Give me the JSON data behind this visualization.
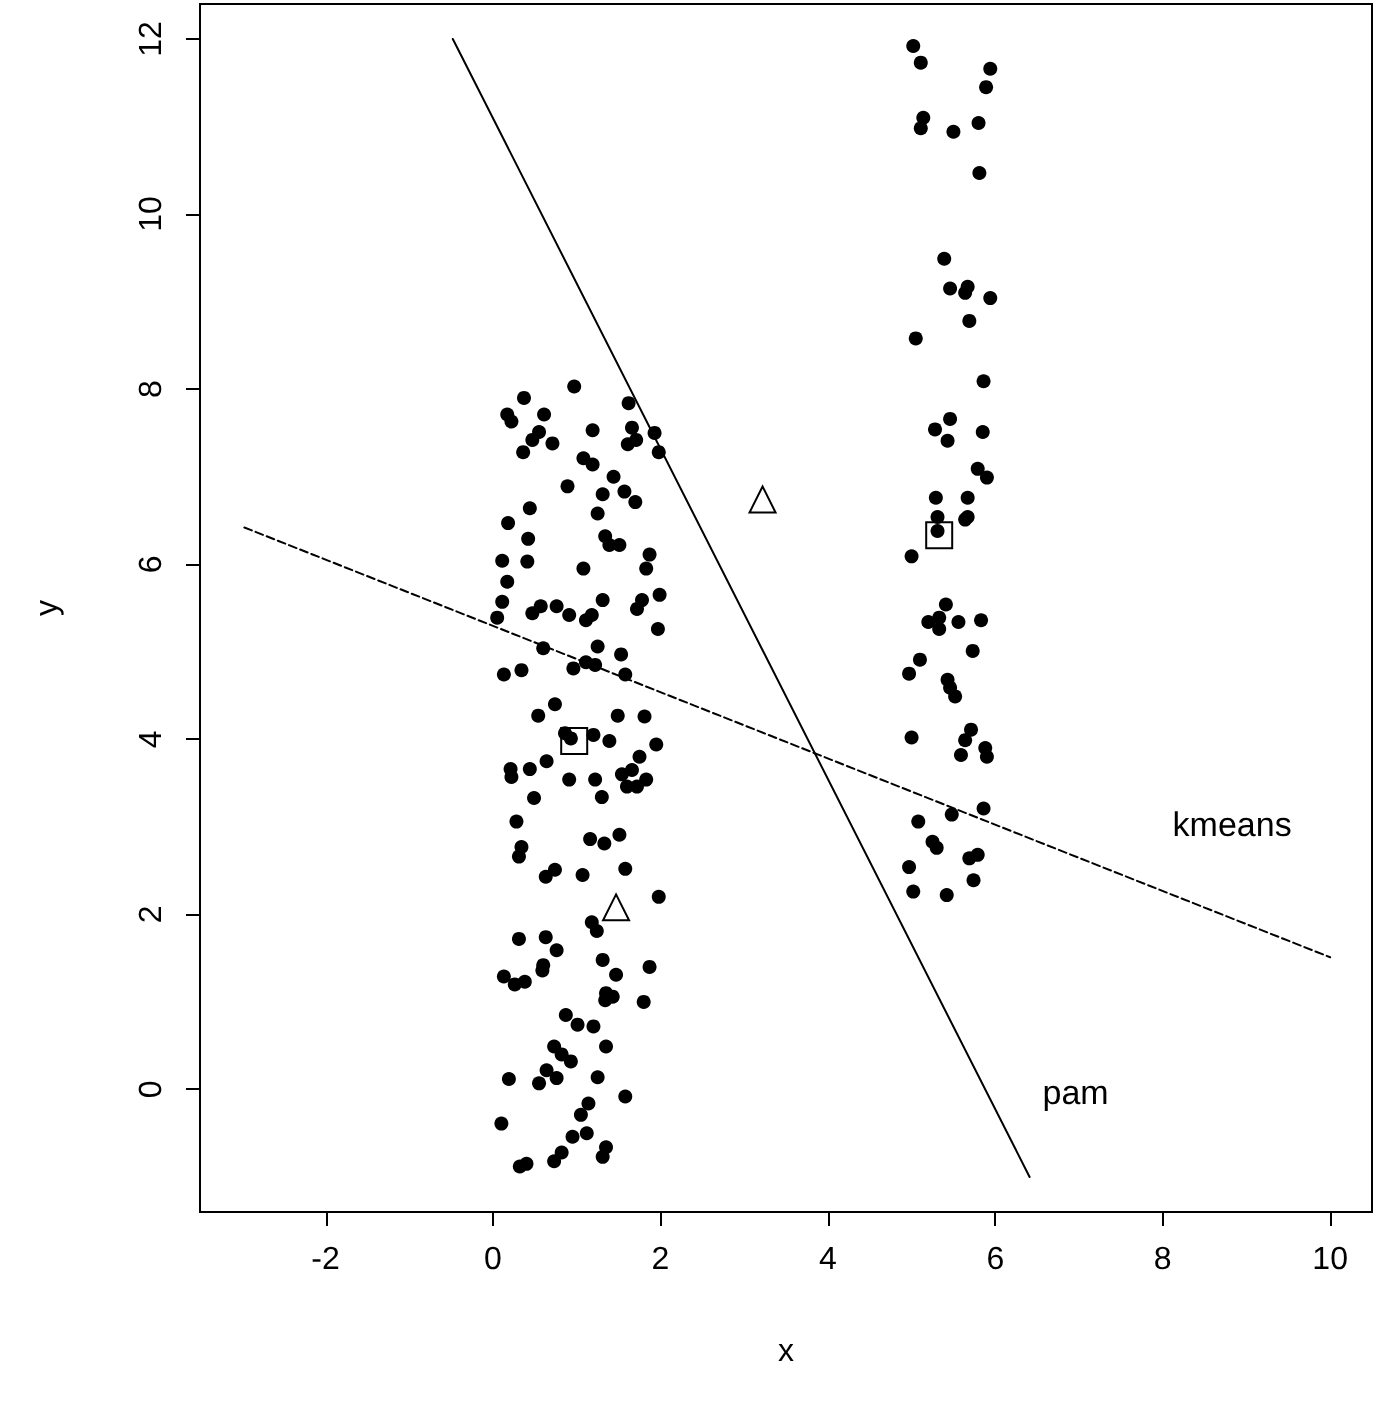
{
  "chart_data": {
    "type": "scatter",
    "xlabel": "x",
    "ylabel": "y",
    "xlim": [
      -3.5,
      10.5
    ],
    "ylim": [
      -1.4,
      12.4
    ],
    "xticks": [
      -2,
      0,
      2,
      4,
      6,
      8,
      10
    ],
    "yticks": [
      0,
      2,
      4,
      6,
      8,
      10,
      12
    ],
    "grid": false,
    "series": [
      {
        "marker": "circle",
        "color": "#000000",
        "x": [
          0.97,
          0.37,
          0.17,
          0.22,
          0.61,
          1.62,
          1.66,
          1.93,
          1.19,
          0.55,
          0.47,
          0.71,
          0.36,
          1.61,
          1.71,
          1.98,
          1.08,
          1.19,
          0.89,
          1.44,
          1.31,
          1.57,
          1.7,
          0.44,
          1.25,
          0.18,
          0.42,
          1.34,
          1.39,
          1.51,
          1.87,
          1.83,
          0.11,
          0.41,
          1.08,
          0.17,
          0.11,
          0.05,
          0.47,
          0.57,
          0.76,
          0.91,
          1.11,
          1.18,
          1.31,
          1.72,
          1.78,
          1.99,
          1.97,
          0.6,
          1.25,
          1.53,
          0.13,
          0.34,
          0.96,
          1.11,
          1.22,
          1.58,
          0.74,
          0.54,
          1.49,
          1.81,
          1.2,
          1.39,
          0.93,
          0.86,
          1.95,
          1.75,
          0.64,
          0.21,
          0.22,
          0.44,
          0.91,
          1.22,
          1.3,
          1.54,
          1.66,
          1.6,
          1.72,
          1.83,
          0.49,
          0.28,
          0.34,
          0.31,
          1.16,
          1.33,
          1.51,
          1.58,
          0.74,
          0.63,
          1.07,
          1.98,
          1.18,
          1.24,
          0.31,
          0.63,
          0.76,
          0.6,
          0.59,
          1.31,
          1.47,
          1.87,
          0.13,
          0.26,
          0.38,
          1.35,
          1.43,
          1.34,
          1.8,
          0.87,
          1.01,
          1.2,
          0.73,
          0.82,
          0.93,
          1.35,
          0.64,
          0.76,
          0.55,
          1.25,
          0.19,
          1.58,
          0.1,
          1.14,
          1.05,
          0.95,
          1.12,
          0.82,
          0.73,
          1.35,
          1.31,
          0.32,
          0.4,
          5.02,
          5.11,
          5.94,
          5.89,
          5.14,
          5.11,
          5.5,
          5.8,
          5.81,
          5.39,
          5.46,
          5.64,
          5.67,
          5.94,
          5.69,
          5.05,
          5.86,
          5.46,
          5.28,
          5.43,
          5.85,
          5.79,
          5.9,
          5.29,
          5.67,
          5.31,
          5.67,
          5.64,
          5.31,
          5.0,
          5.41,
          5.2,
          5.33,
          5.33,
          5.56,
          5.83,
          5.73,
          5.1,
          4.97,
          5.43,
          5.46,
          5.52,
          5.71,
          5.64,
          5.88,
          5.9,
          5.59,
          5.0,
          5.86,
          5.48,
          5.08,
          5.25,
          5.3,
          5.69,
          5.79,
          4.97,
          5.74,
          5.02,
          5.42
        ],
        "values": [
          8.03,
          7.9,
          7.71,
          7.63,
          7.71,
          7.84,
          7.56,
          7.5,
          7.53,
          7.51,
          7.42,
          7.38,
          7.28,
          7.37,
          7.42,
          7.28,
          7.21,
          7.14,
          6.89,
          7.0,
          6.8,
          6.83,
          6.71,
          6.64,
          6.58,
          6.47,
          6.29,
          6.32,
          6.22,
          6.22,
          6.11,
          5.95,
          6.04,
          6.03,
          5.95,
          5.8,
          5.57,
          5.39,
          5.44,
          5.52,
          5.52,
          5.42,
          5.36,
          5.42,
          5.59,
          5.49,
          5.59,
          5.65,
          5.26,
          5.04,
          5.06,
          4.97,
          4.74,
          4.79,
          4.81,
          4.88,
          4.85,
          4.74,
          4.4,
          4.27,
          4.27,
          4.26,
          4.05,
          3.98,
          4.01,
          4.07,
          3.94,
          3.8,
          3.75,
          3.66,
          3.57,
          3.66,
          3.54,
          3.54,
          3.34,
          3.6,
          3.65,
          3.46,
          3.46,
          3.54,
          3.33,
          3.06,
          2.77,
          2.66,
          2.86,
          2.81,
          2.91,
          2.52,
          2.51,
          2.43,
          2.45,
          2.2,
          1.91,
          1.81,
          1.72,
          1.74,
          1.59,
          1.42,
          1.36,
          1.48,
          1.31,
          1.4,
          1.29,
          1.2,
          1.23,
          1.1,
          1.06,
          1.02,
          1.0,
          0.85,
          0.74,
          0.72,
          0.49,
          0.4,
          0.32,
          0.49,
          0.22,
          0.13,
          0.07,
          0.14,
          0.12,
          -0.08,
          -0.39,
          -0.16,
          -0.29,
          -0.54,
          -0.5,
          -0.72,
          -0.82,
          -0.66,
          -0.77,
          -0.88,
          -0.85,
          11.92,
          11.73,
          11.66,
          11.45,
          11.1,
          10.98,
          10.94,
          11.04,
          10.47,
          9.49,
          9.15,
          9.1,
          9.17,
          9.04,
          8.78,
          8.58,
          8.09,
          7.66,
          7.54,
          7.41,
          7.51,
          7.09,
          6.99,
          6.76,
          6.76,
          6.54,
          6.54,
          6.51,
          6.38,
          6.09,
          5.54,
          5.34,
          5.39,
          5.26,
          5.34,
          5.36,
          5.01,
          4.91,
          4.75,
          4.68,
          4.59,
          4.49,
          4.11,
          3.99,
          3.9,
          3.8,
          3.82,
          4.02,
          3.21,
          3.14,
          3.06,
          2.83,
          2.76,
          2.64,
          2.68,
          2.54,
          2.39,
          2.26,
          2.22
        ]
      },
      {
        "marker": "triangle",
        "color": "#000000",
        "x": [
          3.22,
          1.47
        ],
        "values": [
          6.74,
          2.08
        ]
      },
      {
        "marker": "square",
        "color": "#000000",
        "x": [
          0.97,
          5.33
        ],
        "values": [
          3.98,
          6.33
        ]
      },
      {
        "type": "line",
        "name": "kmeans",
        "marker": "none",
        "line_style": "dashed",
        "color": "#000000",
        "x": [
          -2.97,
          10.0
        ],
        "values": [
          6.42,
          1.51
        ]
      },
      {
        "type": "line",
        "name": "pam",
        "marker": "none",
        "line_style": "solid",
        "color": "#000000",
        "x": [
          -0.48,
          6.41
        ],
        "values": [
          12.0,
          -1.0
        ]
      }
    ]
  }
}
